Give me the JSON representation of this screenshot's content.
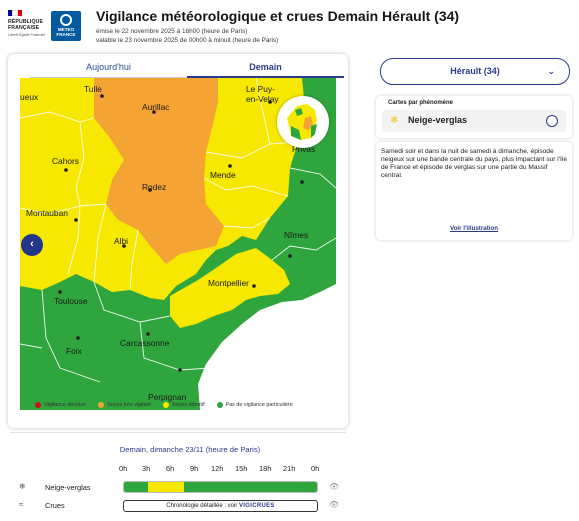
{
  "header": {
    "rf_logo": {
      "line1": "RÉPUBLIQUE",
      "line2": "FRANÇAISE",
      "motto": "Liberté Égalité Fraternité"
    },
    "mf_logo": {
      "line1": "METEO",
      "line2": "FRANCE"
    },
    "title": "Vigilance météorologique et crues Demain Hérault (34)",
    "emission": "émise le 22 novembre 2025 à 16h00 (heure de Paris)",
    "validity": "valable le 23 novembre 2025 de 00h00 à minuit (heure de Paris)"
  },
  "tabs": [
    {
      "label": "Aujourd'hui",
      "active": false
    },
    {
      "label": "Demain",
      "active": true
    }
  ],
  "map": {
    "cities": [
      {
        "name": "Tulle"
      },
      {
        "name": "Aurillac"
      },
      {
        "name": "Le Puy-"
      },
      {
        "name": "en-Velay"
      },
      {
        "name": "ueux"
      },
      {
        "name": "Cahors"
      },
      {
        "name": "Rodez"
      },
      {
        "name": "Mende"
      },
      {
        "name": "Privas"
      },
      {
        "name": "Montauban"
      },
      {
        "name": "Albi"
      },
      {
        "name": "Nîmes"
      },
      {
        "name": "Toulouse"
      },
      {
        "name": "Montpellier"
      },
      {
        "name": "Carcassonne"
      },
      {
        "name": "Foix"
      },
      {
        "name": "Perpignan"
      }
    ],
    "prev_button": "‹"
  },
  "legend": [
    {
      "label": "Vigilance absolue",
      "color": "#c8101e"
    },
    {
      "label": "Soyez très vigilant",
      "color": "#f4a435"
    },
    {
      "label": "Soyez attentif",
      "color": "#f6e800"
    },
    {
      "label": "Pas de vigilance particulière",
      "color": "#2fa53e"
    }
  ],
  "department_select": {
    "value": "Hérault (34)"
  },
  "phenomena": {
    "heading": "Cartes par phénomène",
    "items": [
      {
        "label": "Neige-verglas",
        "icon": "snow-ice-icon"
      }
    ]
  },
  "description": {
    "text": "Samedi soir et dans la nuit de samedi à dimanche, épisode neigeux sur une bande centrale du pays, plus impactant sur l'Ile de France et épisode de verglas sur une partie du Massif central.",
    "link": "Voir l'illustration"
  },
  "timeline": {
    "title": "Demain, dimanche 23/11 (heure de Paris)",
    "hours": [
      "0h",
      "3h",
      "6h",
      "9h",
      "12h",
      "15h",
      "18h",
      "21h",
      "0h"
    ],
    "rows": [
      {
        "label": "Neige-verglas",
        "icon": "snow-ice-icon",
        "segments": [
          {
            "from_hour": 0,
            "to_hour": 3,
            "level": "green",
            "color": "#2fa53e"
          },
          {
            "from_hour": 3,
            "to_hour": 7.5,
            "level": "yellow",
            "color": "#f6e800"
          },
          {
            "from_hour": 7.5,
            "to_hour": 24,
            "level": "green",
            "color": "#2fa53e"
          }
        ]
      },
      {
        "label": "Crues",
        "icon": "waves-icon",
        "chrono_prefix": "Chronologie détaillée : voir",
        "chrono_brand": "VIGICRUES"
      }
    ]
  },
  "colors": {
    "accent": "#2a3a8d",
    "green": "#2fa53e",
    "yellow": "#f6e800",
    "orange": "#f4a435"
  }
}
